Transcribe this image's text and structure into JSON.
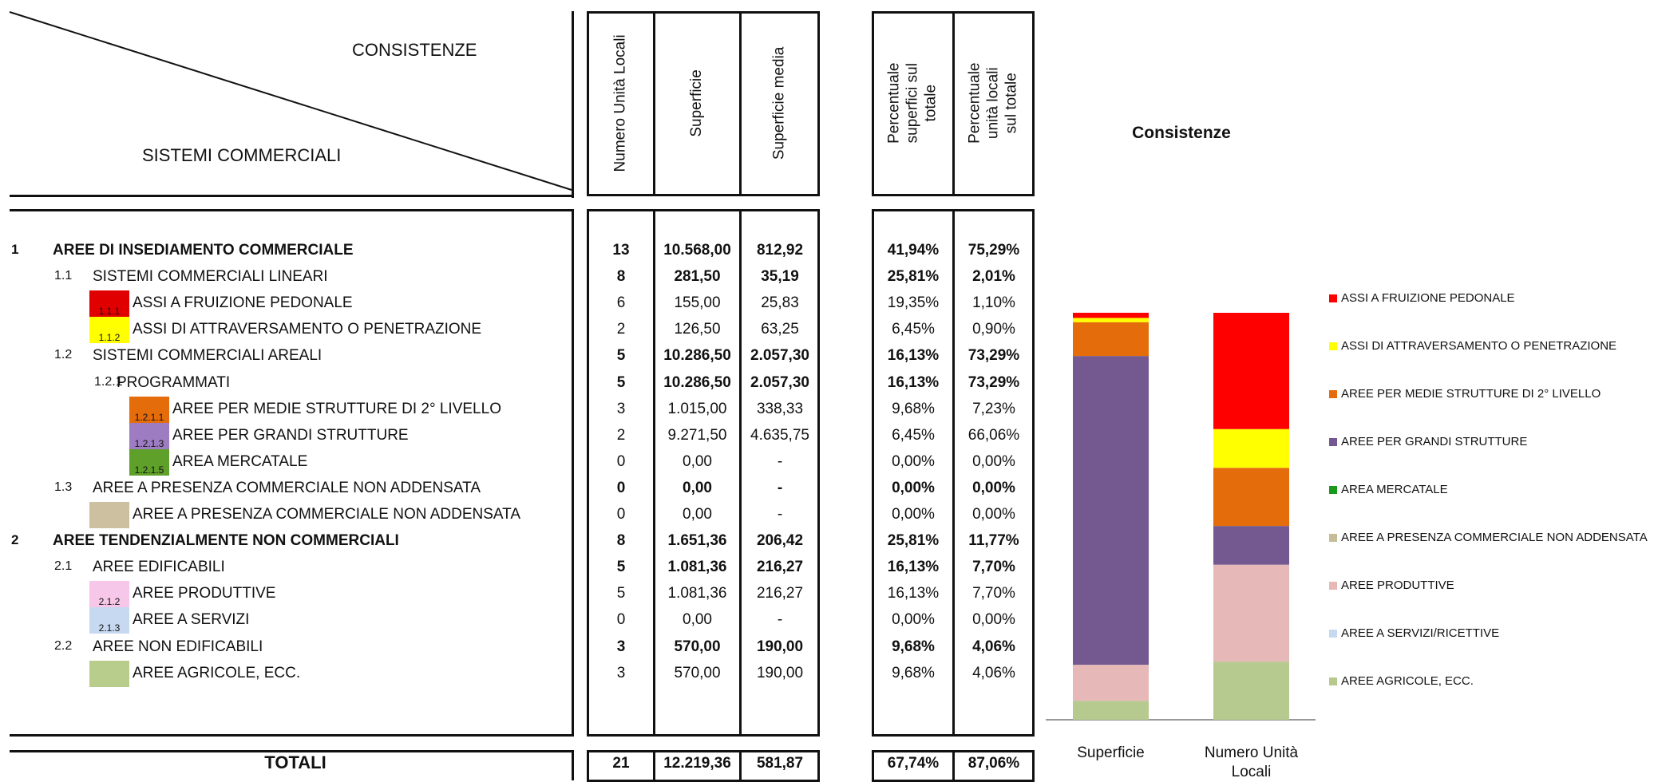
{
  "header": {
    "consistenze_label": "CONSISTENZE",
    "sistemi_label": "SISTEMI COMMERCIALI",
    "columns": [
      "Numero Unità Locali",
      "Superficie",
      "Superficie  media",
      "Percentuale superfici sul totale",
      "Percentuale unità locali sul totale"
    ]
  },
  "rows": [
    {
      "code": "1",
      "label": "AREE DI INSEDIAMENTO COMMERCIALE",
      "bold": true,
      "level": 0,
      "vals": [
        "13",
        "10.568,00",
        "812,92",
        "41,94%",
        "75,29%"
      ]
    },
    {
      "code": "1.1",
      "label": "SISTEMI COMMERCIALI LINEARI",
      "bold": false,
      "level": 1,
      "vals": [
        "8",
        "281,50",
        "35,19",
        "25,81%",
        "2,01%"
      ],
      "boldvals": true
    },
    {
      "code": "1.1.1",
      "label": "ASSI A FRUIZIONE PEDONALE",
      "level": 2,
      "swatch": "#e00000",
      "vals": [
        "6",
        "155,00",
        "25,83",
        "19,35%",
        "1,10%"
      ]
    },
    {
      "code": "1.1.2",
      "label": "ASSI DI ATTRAVERSAMENTO O PENETRAZIONE",
      "level": 2,
      "swatch": "#ffff00",
      "vals": [
        "2",
        "126,50",
        "63,25",
        "6,45%",
        "0,90%"
      ]
    },
    {
      "code": "1.2",
      "label": "SISTEMI COMMERCIALI AREALI",
      "level": 1,
      "vals": [
        "5",
        "10.286,50",
        "2.057,30",
        "16,13%",
        "73,29%"
      ],
      "boldvals": true
    },
    {
      "code": "1.2.1",
      "label": "PROGRAMMATI",
      "level": 3,
      "vals": [
        "5",
        "10.286,50",
        "2.057,30",
        "16,13%",
        "73,29%"
      ],
      "boldvals": true
    },
    {
      "code": "1.2.1.1",
      "label": "AREE PER MEDIE STRUTTURE DI 2° LIVELLO",
      "level": 4,
      "swatch": "#e46c0a",
      "vals": [
        "3",
        "1.015,00",
        "338,33",
        "9,68%",
        "7,23%"
      ]
    },
    {
      "code": "1.2.1.3",
      "label": "AREE PER GRANDI STRUTTURE",
      "level": 4,
      "swatch": "#9e7cc1",
      "vals": [
        "2",
        "9.271,50",
        "4.635,75",
        "6,45%",
        "66,06%"
      ]
    },
    {
      "code": "1.2.1.5",
      "label": "AREA MERCATALE",
      "level": 4,
      "swatch": "#5fa02a",
      "vals": [
        "0",
        "0,00",
        "-",
        "0,00%",
        "0,00%"
      ]
    },
    {
      "code": "1.3",
      "label": "AREE A PRESENZA COMMERCIALE NON ADDENSATA",
      "level": 1,
      "vals": [
        "0",
        "0,00",
        "-",
        "0,00%",
        "0,00%"
      ],
      "boldvals": true
    },
    {
      "code": "",
      "label": "AREE A PRESENZA COMMERCIALE NON ADDENSATA",
      "level": 5,
      "swatch": "#ccc0a0",
      "vals": [
        "0",
        "0,00",
        "-",
        "0,00%",
        "0,00%"
      ]
    },
    {
      "code": "2",
      "label": "AREE TENDENZIALMENTE NON COMMERCIALI",
      "bold": true,
      "level": 0,
      "vals": [
        "8",
        "1.651,36",
        "206,42",
        "25,81%",
        "11,77%"
      ]
    },
    {
      "code": "2.1",
      "label": "AREE EDIFICABILI",
      "level": 1,
      "vals": [
        "5",
        "1.081,36",
        "216,27",
        "16,13%",
        "7,70%"
      ],
      "boldvals": true
    },
    {
      "code": "2.1.2",
      "label": "AREE PRODUTTIVE",
      "level": 2,
      "swatch": "#f6c7e8",
      "vals": [
        "5",
        "1.081,36",
        "216,27",
        "16,13%",
        "7,70%"
      ]
    },
    {
      "code": "2.1.3",
      "label": "AREE A SERVIZI",
      "level": 2,
      "swatch": "#c6d9f0",
      "vals": [
        "0",
        "0,00",
        "-",
        "0,00%",
        "0,00%"
      ]
    },
    {
      "code": "2.2",
      "label": "AREE NON EDIFICABILI",
      "level": 1,
      "vals": [
        "3",
        "570,00",
        "190,00",
        "9,68%",
        "4,06%"
      ],
      "boldvals": true
    },
    {
      "code": "",
      "label": "AREE AGRICOLE, ECC.",
      "level": 5,
      "swatch": "#b8cc8c",
      "vals": [
        "3",
        "570,00",
        "190,00",
        "9,68%",
        "4,06%"
      ]
    }
  ],
  "totals": {
    "label": "TOTALI",
    "vals": [
      "21",
      "12.219,36",
      "581,87",
      "67,74%",
      "87,06%"
    ]
  },
  "chart_data": {
    "type": "bar",
    "stacked": true,
    "title": "Consistenze",
    "categories": [
      "Superficie",
      "Numero Unità Locali"
    ],
    "ylim": [
      0,
      100
    ],
    "series": [
      {
        "name": "AREE AGRICOLE, ECC.",
        "color": "#b6c98f",
        "values": [
          4.66,
          14.29
        ]
      },
      {
        "name": "AREE A SERVIZI/RICETTIVE",
        "color": "#c6d9f0",
        "values": [
          0,
          0
        ]
      },
      {
        "name": "AREE PRODUTTIVE",
        "color": "#e6b8b7",
        "values": [
          8.85,
          23.81
        ]
      },
      {
        "name": "AREE A PRESENZA COMMERCIALE NON ADDENSATA",
        "color": "#c4bd97",
        "values": [
          0,
          0
        ]
      },
      {
        "name": "AREA MERCATALE",
        "color": "#1a9a1a",
        "values": [
          0,
          0
        ]
      },
      {
        "name": "AREE PER GRANDI STRUTTURE",
        "color": "#735990",
        "values": [
          75.88,
          9.52
        ]
      },
      {
        "name": "AREE PER MEDIE STRUTTURE DI 2° LIVELLO",
        "color": "#e46c0a",
        "values": [
          8.31,
          14.29
        ]
      },
      {
        "name": "ASSI DI ATTRAVERSAMENTO O PENETRAZIONE",
        "color": "#ffff00",
        "values": [
          1.04,
          9.52
        ]
      },
      {
        "name": "ASSI A FRUIZIONE PEDONALE",
        "color": "#ff0000",
        "values": [
          1.27,
          28.57
        ]
      }
    ],
    "legend_order": [
      "ASSI A FRUIZIONE PEDONALE",
      "ASSI DI ATTRAVERSAMENTO O PENETRAZIONE",
      "AREE PER MEDIE STRUTTURE DI 2° LIVELLO",
      "AREE PER GRANDI STRUTTURE",
      "AREA MERCATALE",
      "AREE A PRESENZA COMMERCIALE NON ADDENSATA",
      "AREE PRODUTTIVE",
      "AREE A SERVIZI/RICETTIVE",
      "AREE AGRICOLE, ECC."
    ],
    "legend_position": "right"
  }
}
